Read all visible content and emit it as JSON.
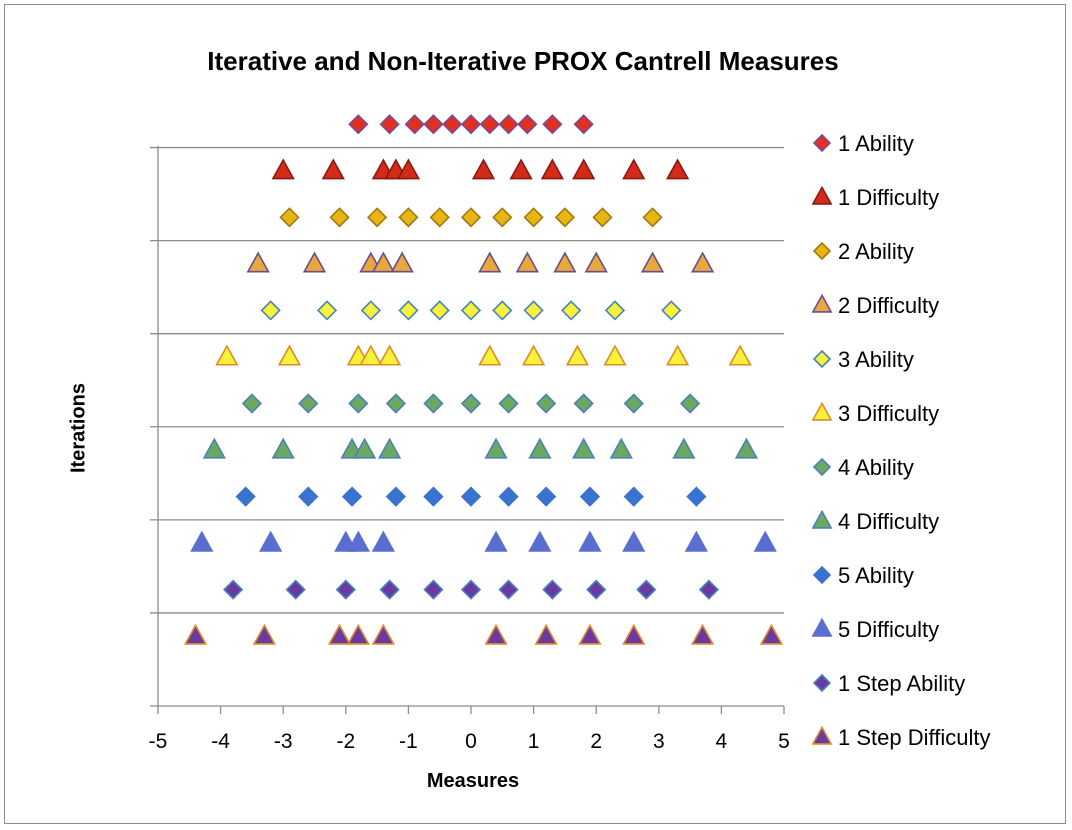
{
  "chart_data": {
    "type": "scatter",
    "title": "Iterative and Non-Iterative PROX Cantrell Measures",
    "xlabel": "Measures",
    "ylabel": "Iterations",
    "xlim": [
      -5,
      5
    ],
    "xticks": [
      "-5",
      "-4",
      "-3",
      "-2",
      "-1",
      "0",
      "1",
      "2",
      "3",
      "4",
      "5"
    ],
    "ylim": [
      0,
      13
    ],
    "grid": "horizontal",
    "legend_position": "right",
    "series": [
      {
        "name": "1 Ability",
        "marker": "diamond",
        "fill": "#e0301e",
        "stroke": "#7a4a9a",
        "y": 12.5,
        "x": [
          -1.8,
          -1.3,
          -0.9,
          -0.6,
          -0.3,
          0.0,
          0.3,
          0.6,
          0.9,
          1.3,
          1.8
        ]
      },
      {
        "name": "1 Difficulty",
        "marker": "triangle",
        "fill": "#d42a1a",
        "stroke": "#8a1a10",
        "y": 11.5,
        "x": [
          -3.0,
          -2.2,
          -1.4,
          -1.2,
          -1.0,
          0.2,
          0.8,
          1.3,
          1.8,
          2.6,
          3.3
        ]
      },
      {
        "name": "2 Ability",
        "marker": "diamond",
        "fill": "#e8b512",
        "stroke": "#a07a10",
        "y": 10.5,
        "x": [
          -2.9,
          -2.1,
          -1.5,
          -1.0,
          -0.5,
          0.0,
          0.5,
          1.0,
          1.5,
          2.1,
          2.9
        ]
      },
      {
        "name": "2 Difficulty",
        "marker": "triangle",
        "fill": "#e8a83a",
        "stroke": "#6b4a9a",
        "y": 9.5,
        "x": [
          -3.4,
          -2.5,
          -1.6,
          -1.4,
          -1.1,
          0.3,
          0.9,
          1.5,
          2.0,
          2.9,
          3.7
        ]
      },
      {
        "name": "3 Ability",
        "marker": "diamond",
        "fill": "#f6f23a",
        "stroke": "#4a80c0",
        "y": 8.5,
        "x": [
          -3.2,
          -2.3,
          -1.6,
          -1.0,
          -0.5,
          0.0,
          0.5,
          1.0,
          1.6,
          2.3,
          3.2
        ]
      },
      {
        "name": "3 Difficulty",
        "marker": "triangle",
        "fill": "#f6f23a",
        "stroke": "#e08a2a",
        "y": 7.5,
        "x": [
          -3.9,
          -2.9,
          -1.8,
          -1.6,
          -1.3,
          0.3,
          1.0,
          1.7,
          2.3,
          3.3,
          4.3
        ]
      },
      {
        "name": "4 Ability",
        "marker": "diamond",
        "fill": "#6aaa5a",
        "stroke": "#4a80c0",
        "y": 6.5,
        "x": [
          -3.5,
          -2.6,
          -1.8,
          -1.2,
          -0.6,
          0.0,
          0.6,
          1.2,
          1.8,
          2.6,
          3.5
        ]
      },
      {
        "name": "4 Difficulty",
        "marker": "triangle",
        "fill": "#6aaa5a",
        "stroke": "#4a80c0",
        "y": 5.5,
        "x": [
          -4.1,
          -3.0,
          -1.9,
          -1.7,
          -1.3,
          0.4,
          1.1,
          1.8,
          2.4,
          3.4,
          4.4
        ]
      },
      {
        "name": "5 Ability",
        "marker": "diamond",
        "fill": "#3a72d0",
        "stroke": "#3a72d0",
        "y": 4.5,
        "x": [
          -3.6,
          -2.6,
          -1.9,
          -1.2,
          -0.6,
          0.0,
          0.6,
          1.2,
          1.9,
          2.6,
          3.6
        ]
      },
      {
        "name": "5 Difficulty",
        "marker": "triangle",
        "fill": "#5a6ed0",
        "stroke": "#5a6ed0",
        "y": 3.5,
        "x": [
          -4.3,
          -3.2,
          -2.0,
          -1.8,
          -1.4,
          0.4,
          1.1,
          1.9,
          2.6,
          3.6,
          4.7
        ]
      },
      {
        "name": "1 Step Ability",
        "marker": "diamond",
        "fill": "#6a3aa0",
        "stroke": "#4a80c0",
        "y": 2.5,
        "x": [
          -3.8,
          -2.8,
          -2.0,
          -1.3,
          -0.6,
          0.0,
          0.6,
          1.3,
          2.0,
          2.8,
          3.8
        ]
      },
      {
        "name": "1 Step Difficulty",
        "marker": "triangle",
        "fill": "#6a3aa0",
        "stroke": "#e08a2a",
        "y": 1.5,
        "x": [
          -4.4,
          -3.3,
          -2.1,
          -1.8,
          -1.4,
          0.4,
          1.2,
          1.9,
          2.6,
          3.7,
          4.8
        ]
      }
    ]
  }
}
